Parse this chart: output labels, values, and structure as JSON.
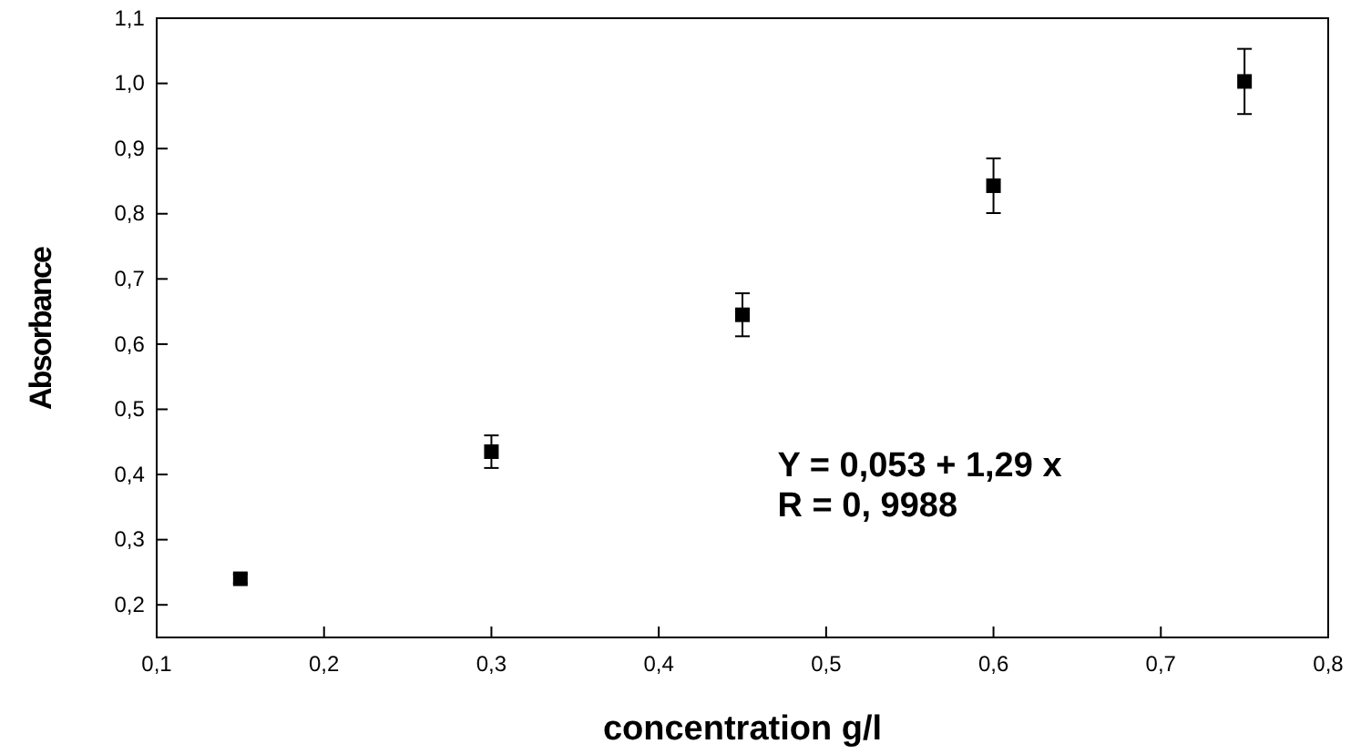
{
  "chart_data": {
    "type": "scatter",
    "xlabel": "concentration g/l",
    "ylabel": "Absorbance",
    "marker": "square",
    "x": [
      0.15,
      0.3,
      0.45,
      0.6,
      0.75
    ],
    "series": [
      {
        "color": "#000000",
        "values": [
          0.24,
          0.435,
          0.645,
          0.843,
          1.003
        ],
        "errors": [
          0.007,
          0.025,
          0.033,
          0.042,
          0.05
        ]
      }
    ],
    "xlim": [
      0.1,
      0.8
    ],
    "ylim": [
      0.15,
      1.1
    ],
    "xticks": [
      {
        "value": 0.1,
        "label": "0,1"
      },
      {
        "value": 0.2,
        "label": "0,2"
      },
      {
        "value": 0.3,
        "label": "0,3"
      },
      {
        "value": 0.4,
        "label": "0,4"
      },
      {
        "value": 0.5,
        "label": "0,5"
      },
      {
        "value": 0.6,
        "label": "0,6"
      },
      {
        "value": 0.7,
        "label": "0,7"
      },
      {
        "value": 0.8,
        "label": "0,8"
      }
    ],
    "yticks": [
      {
        "value": 0.2,
        "label": "0,2"
      },
      {
        "value": 0.3,
        "label": "0,3"
      },
      {
        "value": 0.4,
        "label": "0,4"
      },
      {
        "value": 0.5,
        "label": "0,5"
      },
      {
        "value": 0.6,
        "label": "0,6"
      },
      {
        "value": 0.7,
        "label": "0,7"
      },
      {
        "value": 0.8,
        "label": "0,8"
      },
      {
        "value": 0.9,
        "label": "0,9"
      },
      {
        "value": 1.0,
        "label": "1,0"
      },
      {
        "value": 1.1,
        "label": "1,1"
      }
    ],
    "annotations": [
      "Y = 0,053 + 1,29 x",
      "R = 0, 9988"
    ]
  }
}
